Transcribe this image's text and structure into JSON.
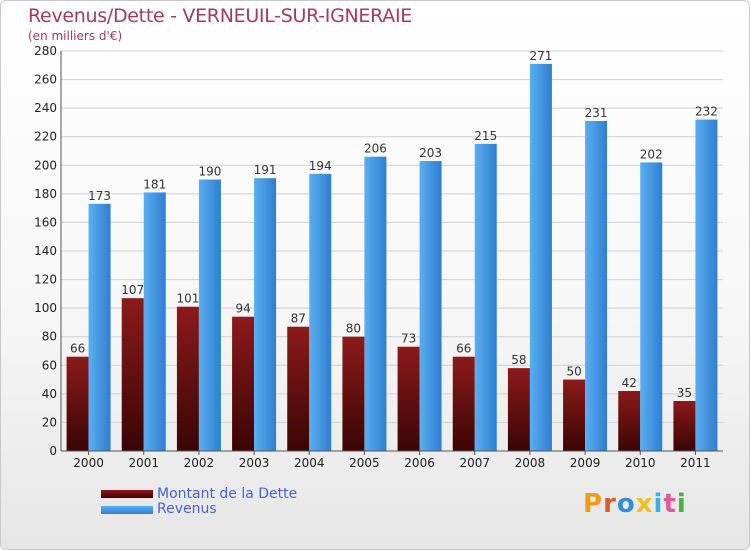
{
  "header": {
    "title": "Revenus/Dette - VERNEUIL-SUR-IGNERAIE",
    "subtitle": "(en milliers d'€)"
  },
  "legend": {
    "dette_label": "Montant de la Dette",
    "revenus_label": "Revenus"
  },
  "logo": {
    "text": "Proxiti"
  },
  "colors": {
    "dette_top": "#8c1a1a",
    "dette_bottom": "#3a0505",
    "revenus_top": "#5aaef0",
    "revenus_bottom": "#2f7fd0",
    "title": "#a33b5a",
    "legend_text": "#4a5fe0"
  },
  "chart_data": {
    "type": "bar",
    "categories": [
      "2000",
      "2001",
      "2002",
      "2003",
      "2004",
      "2005",
      "2006",
      "2007",
      "2008",
      "2009",
      "2010",
      "2011"
    ],
    "series": [
      {
        "name": "Montant de la Dette",
        "values": [
          66,
          107,
          101,
          94,
          87,
          80,
          73,
          66,
          58,
          50,
          42,
          35
        ]
      },
      {
        "name": "Revenus",
        "values": [
          173,
          181,
          190,
          191,
          194,
          206,
          203,
          215,
          271,
          231,
          202,
          232
        ]
      }
    ],
    "title": "Revenus/Dette - VERNEUIL-SUR-IGNERAIE",
    "ylabel": "(en milliers d'€)",
    "ylim": [
      0,
      280
    ],
    "yticks": [
      0,
      20,
      40,
      60,
      80,
      100,
      120,
      140,
      160,
      180,
      200,
      220,
      240,
      260,
      280
    ],
    "grid": true,
    "legend_position": "bottom-left"
  }
}
